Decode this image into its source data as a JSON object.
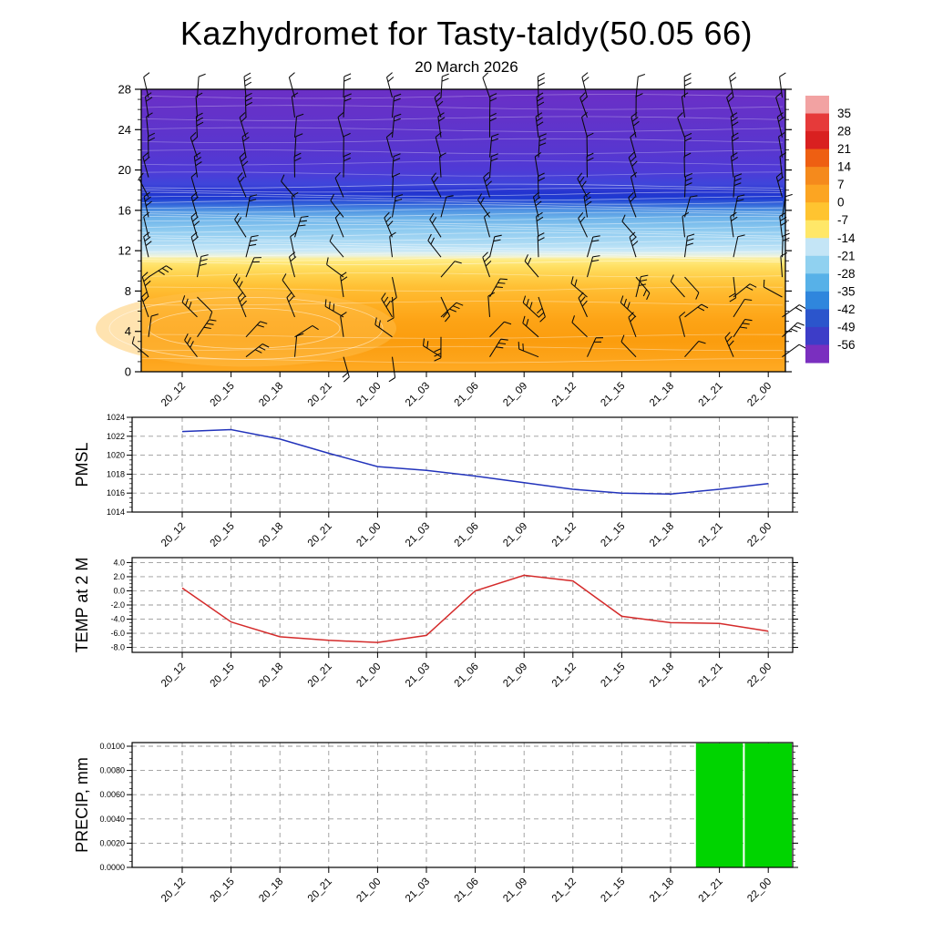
{
  "title": "Kazhydromet for Tasty-taldy(50.05 66)",
  "subtitle": "20 March 2026",
  "time_labels": [
    "20_12",
    "20_15",
    "20_18",
    "20_21",
    "21_00",
    "21_03",
    "21_06",
    "21_09",
    "21_12",
    "21_15",
    "21_18",
    "21_21",
    "22_00"
  ],
  "chart_data": [
    {
      "type": "heatmap",
      "name": "temperature-height-cross-section",
      "ylim": [
        0,
        28
      ],
      "yticks": [
        0,
        4,
        8,
        12,
        16,
        20,
        24,
        28
      ],
      "colorbar": {
        "ticks": [
          35,
          28,
          21,
          14,
          7,
          0,
          -7,
          -14,
          -21,
          -28,
          -35,
          -42,
          -49,
          -56
        ],
        "segment_colors": [
          "#f2a2a2",
          "#e63a3a",
          "#d92020",
          "#ee5f12",
          "#f58a1c",
          "#fca522",
          "#ffc430",
          "#ffe768",
          "#c4e5f6",
          "#90d1f0",
          "#57b1e8",
          "#2f86dd",
          "#2b55cc",
          "#3d3dc8",
          "#7a2fbf"
        ]
      },
      "gradient_stops": [
        {
          "h": 28,
          "color": "#6b2fc6"
        },
        {
          "h": 25,
          "color": "#6233ca"
        },
        {
          "h": 22,
          "color": "#5836cf"
        },
        {
          "h": 20,
          "color": "#4f3ad6"
        },
        {
          "h": 18.6,
          "color": "#3f45da"
        },
        {
          "h": 17.8,
          "color": "#2433cf"
        },
        {
          "h": 17.2,
          "color": "#1f3bd2"
        },
        {
          "h": 16.6,
          "color": "#3365da"
        },
        {
          "h": 16.0,
          "color": "#4f93e2"
        },
        {
          "h": 15.2,
          "color": "#6fb4ea"
        },
        {
          "h": 14.0,
          "color": "#8fcbf0"
        },
        {
          "h": 12.8,
          "color": "#abdaf4"
        },
        {
          "h": 12.0,
          "color": "#c9e8f7"
        },
        {
          "h": 11.5,
          "color": "#ecf3df"
        },
        {
          "h": 11.1,
          "color": "#ffec85"
        },
        {
          "h": 10.4,
          "color": "#ffdf62"
        },
        {
          "h": 9.5,
          "color": "#ffd04a"
        },
        {
          "h": 8.5,
          "color": "#ffc136"
        },
        {
          "h": 7.0,
          "color": "#ffb226"
        },
        {
          "h": 5.0,
          "color": "#fda315"
        },
        {
          "h": 3.0,
          "color": "#fb9d0e"
        },
        {
          "h": 1.2,
          "color": "#fda41a"
        },
        {
          "h": 0,
          "color": "#feaa24"
        }
      ],
      "wind_barbs": {
        "rows": 14,
        "columns": 14,
        "color": "#0a0a0a"
      },
      "contours_color": "#ffffff"
    },
    {
      "type": "line",
      "name": "pmsl",
      "ylabel": "PMSL",
      "line_color": "#2233bb",
      "ylim": [
        1014,
        1024
      ],
      "yticks": [
        1014,
        1016,
        1018,
        1020,
        1022,
        1024
      ],
      "ytick_labels": [
        "1014",
        "1016",
        "1018",
        "1020",
        "1022",
        "1024"
      ],
      "values": [
        1022.5,
        1022.7,
        1021.7,
        1020.2,
        1018.8,
        1018.4,
        1017.8,
        1017.1,
        1016.4,
        1016.0,
        1015.9,
        1016.4,
        1017.0
      ]
    },
    {
      "type": "line",
      "name": "temp-2m",
      "ylabel": "TEMP at 2 M",
      "line_color": "#d42a2a",
      "ylim": [
        -8.7,
        4.7
      ],
      "yticks": [
        -8,
        -6,
        -4,
        -2,
        0,
        2,
        4
      ],
      "ytick_labels": [
        "-8.0",
        "-6.0",
        "-4.0",
        "-2.0",
        "0.0",
        "2.0",
        "4.0"
      ],
      "values": [
        0.4,
        -4.4,
        -6.5,
        -7.0,
        -7.3,
        -6.3,
        0.0,
        2.2,
        1.4,
        -3.6,
        -4.5,
        -4.6,
        -5.7
      ]
    },
    {
      "type": "bar",
      "name": "precip",
      "ylabel": "PRECIP, mm",
      "bar_color": "#00d400",
      "ylim": [
        0,
        0.0103
      ],
      "yticks": [
        0,
        0.002,
        0.004,
        0.006,
        0.008,
        0.01
      ],
      "ytick_labels": [
        "0.0000",
        "0.0020",
        "0.0040",
        "0.0060",
        "0.0080",
        "0.0100"
      ],
      "values": [
        0,
        0,
        0,
        0,
        0,
        0,
        0,
        0,
        0,
        0,
        0,
        0.01,
        0.01
      ]
    }
  ]
}
